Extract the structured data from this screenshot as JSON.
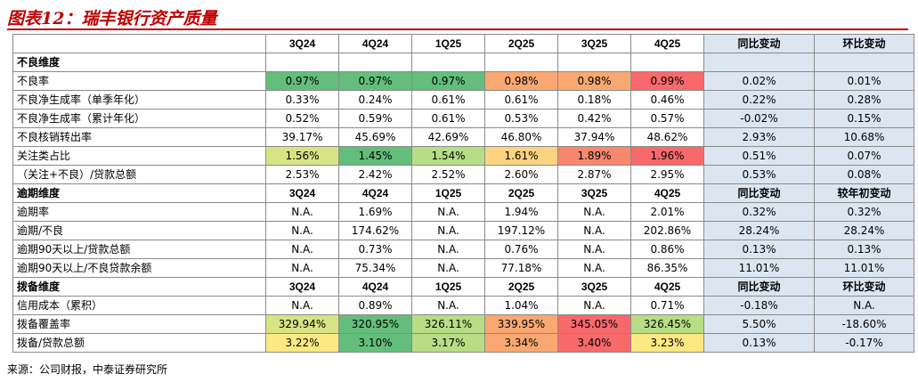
{
  "title": "图表12：瑞丰银行资产质量",
  "source": "来源：公司财报，中泰证券研究所",
  "colors": {
    "title": "#c00000",
    "change_column_bg": "#dce6f1",
    "dark_green": "#63be7b",
    "green": "#8ecf85",
    "light_green": "#b7dd86",
    "yellow_green": "#d8e384",
    "yellow": "#fce983",
    "light_orange": "#fcd47f",
    "orange": "#f9a872",
    "red_orange": "#f8876e",
    "red": "#f8696b"
  },
  "quarters": [
    "3Q24",
    "4Q24",
    "1Q25",
    "2Q25",
    "3Q25",
    "4Q25"
  ],
  "sections": [
    {
      "name": "不良维度",
      "change_headers": [
        "同比变动",
        "环比变动"
      ],
      "show_quarters": false,
      "rows": [
        {
          "label": "不良率",
          "values": [
            "0.97%",
            "0.97%",
            "0.97%",
            "0.98%",
            "0.98%",
            "0.99%"
          ],
          "changes": [
            "0.02%",
            "0.01%"
          ],
          "fills": [
            "#63be7b",
            "#63be7b",
            "#63be7b",
            "#f9a872",
            "#f9a872",
            "#f8696b"
          ]
        },
        {
          "label": "不良净生成率（单季年化）",
          "values": [
            "0.33%",
            "0.24%",
            "0.61%",
            "0.61%",
            "0.18%",
            "0.46%"
          ],
          "changes": [
            "0.22%",
            "0.28%"
          ]
        },
        {
          "label": "不良净生成率（累计年化）",
          "values": [
            "0.52%",
            "0.59%",
            "0.61%",
            "0.53%",
            "0.42%",
            "0.57%"
          ],
          "changes": [
            "-0.02%",
            "0.15%"
          ]
        },
        {
          "label": "不良核销转出率",
          "values": [
            "39.17%",
            "45.69%",
            "42.69%",
            "46.80%",
            "37.94%",
            "48.62%"
          ],
          "changes": [
            "2.93%",
            "10.68%"
          ]
        },
        {
          "label": "关注类占比",
          "values": [
            "1.56%",
            "1.45%",
            "1.54%",
            "1.61%",
            "1.89%",
            "1.96%"
          ],
          "changes": [
            "0.51%",
            "0.07%"
          ],
          "fills": [
            "#d8e384",
            "#63be7b",
            "#b7dd86",
            "#fcd47f",
            "#f8876e",
            "#f8696b"
          ]
        },
        {
          "label": "（关注+不良）/贷款总额",
          "values": [
            "2.53%",
            "2.42%",
            "2.52%",
            "2.60%",
            "2.87%",
            "2.95%"
          ],
          "changes": [
            "0.53%",
            "0.08%"
          ]
        }
      ]
    },
    {
      "name": "逾期维度",
      "change_headers": [
        "同比变动",
        "较年初变动"
      ],
      "show_quarters": true,
      "rows": [
        {
          "label": "逾期率",
          "values": [
            "N.A.",
            "1.69%",
            "N.A.",
            "1.94%",
            "N.A.",
            "2.01%"
          ],
          "changes": [
            "0.32%",
            "0.32%"
          ]
        },
        {
          "label": "逾期/不良",
          "values": [
            "N.A.",
            "174.62%",
            "N.A.",
            "197.12%",
            "N.A.",
            "202.86%"
          ],
          "changes": [
            "28.24%",
            "28.24%"
          ]
        },
        {
          "label": "逾期90天以上/贷款总额",
          "values": [
            "N.A.",
            "0.73%",
            "N.A.",
            "0.76%",
            "N.A.",
            "0.86%"
          ],
          "changes": [
            "0.13%",
            "0.13%"
          ]
        },
        {
          "label": "逾期90天以上/不良贷款余额",
          "values": [
            "N.A.",
            "75.34%",
            "N.A.",
            "77.18%",
            "N.A.",
            "86.35%"
          ],
          "changes": [
            "11.01%",
            "11.01%"
          ]
        }
      ]
    },
    {
      "name": "拨备维度",
      "change_headers": [
        "同比变动",
        "环比变动"
      ],
      "show_quarters": true,
      "rows": [
        {
          "label": "信用成本（累积）",
          "values": [
            "N.A.",
            "0.89%",
            "N.A.",
            "1.04%",
            "N.A.",
            "0.71%"
          ],
          "changes": [
            "-0.18%",
            "N.A."
          ]
        },
        {
          "label": "拨备覆盖率",
          "values": [
            "329.94%",
            "320.95%",
            "326.11%",
            "339.95%",
            "345.05%",
            "326.45%"
          ],
          "changes": [
            "5.50%",
            "-18.60%"
          ],
          "fills": [
            "#d8e384",
            "#63be7b",
            "#b7dd86",
            "#f9a872",
            "#f8696b",
            "#b7dd86"
          ]
        },
        {
          "label": "拨备/贷款总额",
          "values": [
            "3.22%",
            "3.10%",
            "3.17%",
            "3.34%",
            "3.40%",
            "3.23%"
          ],
          "changes": [
            "0.13%",
            "-0.17%"
          ],
          "fills": [
            "#fce983",
            "#63be7b",
            "#b7dd86",
            "#f9a872",
            "#f8696b",
            "#fce983"
          ]
        }
      ]
    }
  ]
}
